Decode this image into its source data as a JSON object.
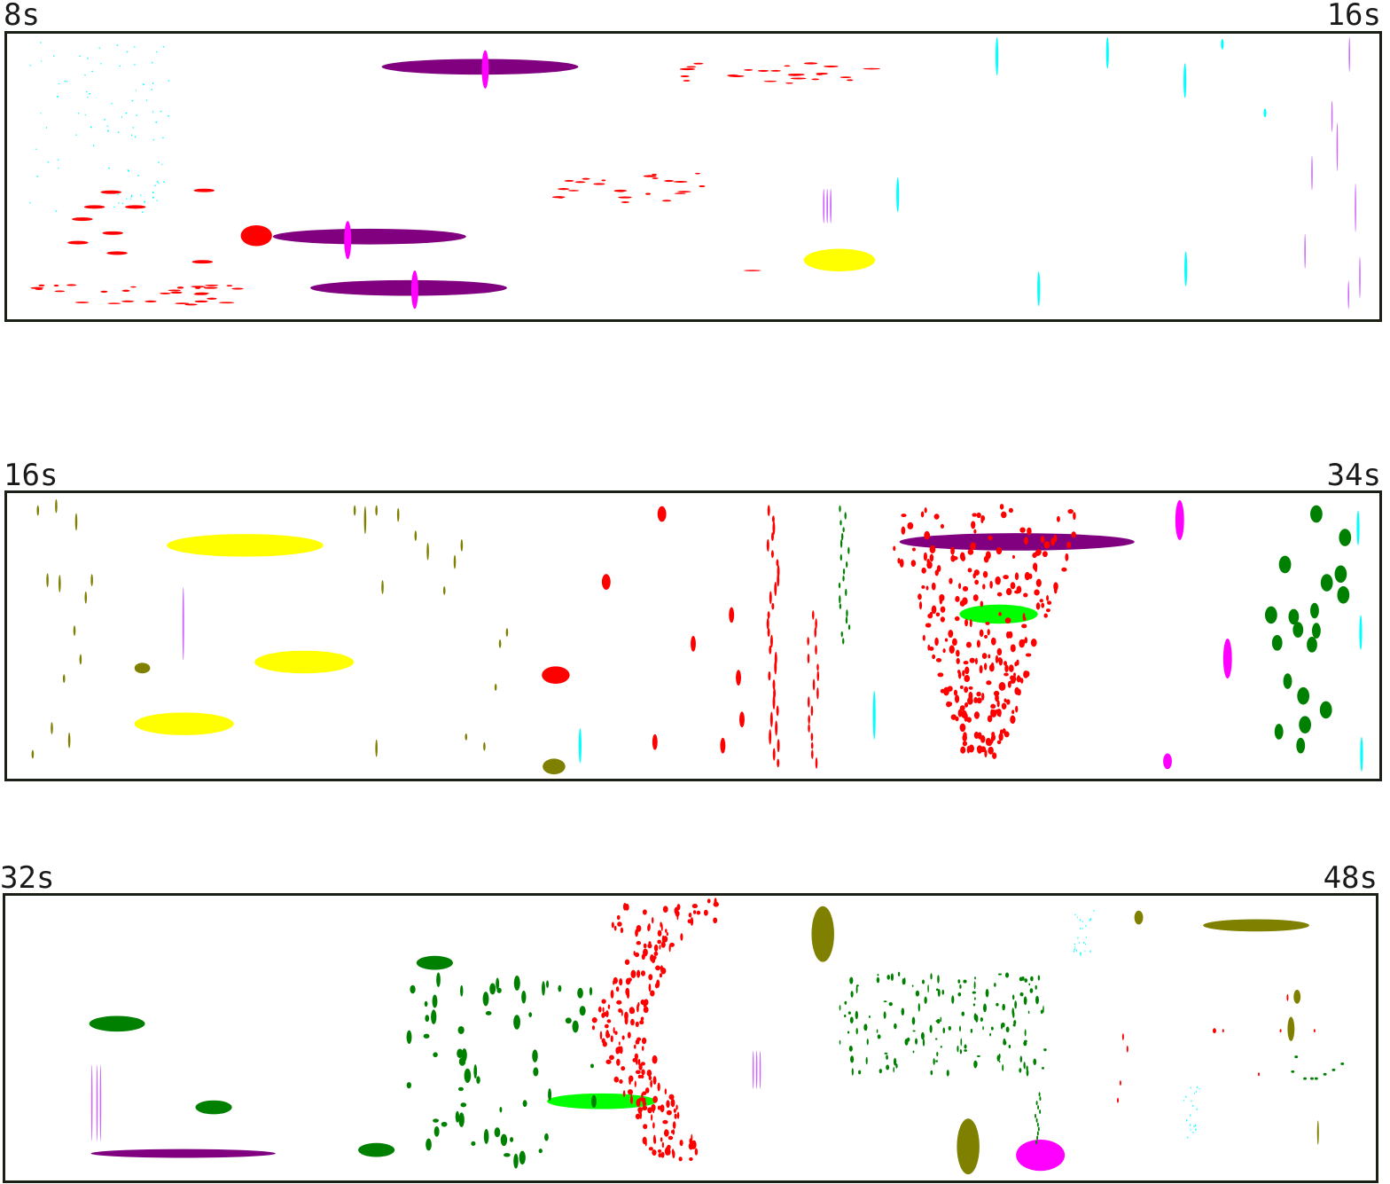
{
  "rows": [
    {
      "start_label": "8s",
      "end_label": "16s"
    },
    {
      "start_label": "16s",
      "end_label": "34s"
    },
    {
      "start_label": "32s",
      "end_label": "48s"
    }
  ],
  "colors": {
    "red": "#ff0000",
    "purple": "#800080",
    "magenta": "#ff00ff",
    "cyan": "#00ffff",
    "yellow": "#ffff00",
    "olive": "#808000",
    "green": "#008000",
    "lime": "#00ff00",
    "violet": "#cc66ff",
    "border": "#1a2016"
  }
}
